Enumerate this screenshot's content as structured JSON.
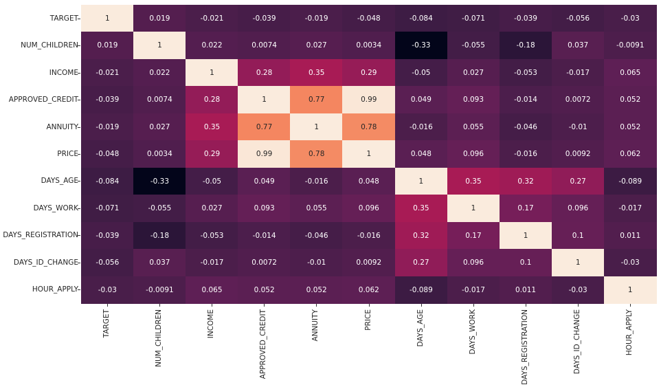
{
  "chart_data": {
    "type": "heatmap",
    "title": "",
    "xlabel": "",
    "ylabel": "",
    "colormap": "rocket",
    "value_range": [
      -0.33,
      1
    ],
    "colorbar": false,
    "annotations": true,
    "labels": [
      "TARGET",
      "NUM_CHILDREN",
      "INCOME",
      "APPROVED_CREDIT",
      "ANNUITY",
      "PRICE",
      "DAYS_AGE",
      "DAYS_WORK",
      "DAYS_REGISTRATION",
      "DAYS_ID_CHANGE",
      "HOUR_APPLY"
    ],
    "matrix": [
      [
        "1",
        "0.019",
        "-0.021",
        "-0.039",
        "-0.019",
        "-0.048",
        "-0.084",
        "-0.071",
        "-0.039",
        "-0.056",
        "-0.03"
      ],
      [
        "0.019",
        "1",
        "0.022",
        "0.0074",
        "0.027",
        "0.0034",
        "-0.33",
        "-0.055",
        "-0.18",
        "0.037",
        "-0.0091"
      ],
      [
        "-0.021",
        "0.022",
        "1",
        "0.28",
        "0.35",
        "0.29",
        "-0.05",
        "0.027",
        "-0.053",
        "-0.017",
        "0.065"
      ],
      [
        "-0.039",
        "0.0074",
        "0.28",
        "1",
        "0.77",
        "0.99",
        "0.049",
        "0.093",
        "-0.014",
        "0.0072",
        "0.052"
      ],
      [
        "-0.019",
        "0.027",
        "0.35",
        "0.77",
        "1",
        "0.78",
        "-0.016",
        "0.055",
        "-0.046",
        "-0.01",
        "0.052"
      ],
      [
        "-0.048",
        "0.0034",
        "0.29",
        "0.99",
        "0.78",
        "1",
        "0.048",
        "0.096",
        "-0.016",
        "0.0092",
        "0.062"
      ],
      [
        "-0.084",
        "-0.33",
        "-0.05",
        "0.049",
        "-0.016",
        "0.048",
        "1",
        "0.35",
        "0.32",
        "0.27",
        "-0.089"
      ],
      [
        "-0.071",
        "-0.055",
        "0.027",
        "0.093",
        "0.055",
        "0.096",
        "0.35",
        "1",
        "0.17",
        "0.096",
        "-0.017"
      ],
      [
        "-0.039",
        "-0.18",
        "-0.053",
        "-0.014",
        "-0.046",
        "-0.016",
        "0.32",
        "0.17",
        "1",
        "0.1",
        "0.011"
      ],
      [
        "-0.056",
        "0.037",
        "-0.017",
        "0.0072",
        "-0.01",
        "0.0092",
        "0.27",
        "0.096",
        "0.1",
        "1",
        "-0.03"
      ],
      [
        "-0.03",
        "-0.0091",
        "0.065",
        "0.052",
        "0.052",
        "0.062",
        "-0.089",
        "-0.017",
        "0.011",
        "-0.03",
        "1"
      ]
    ]
  }
}
